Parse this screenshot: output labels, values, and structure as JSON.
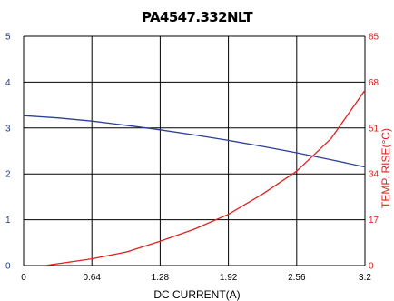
{
  "chart_data": {
    "type": "line",
    "title": "PA4547.332NLT",
    "xlabel": "DC CURRENT(A)",
    "ylabel": "",
    "y2label": "TEMP. RISE(°C)",
    "xlim": [
      0,
      3.2
    ],
    "ylim": [
      0,
      5
    ],
    "y2lim": [
      0,
      85
    ],
    "x_ticks": [
      "0",
      "0.64",
      "1.28",
      "1.92",
      "2.56",
      "3.2"
    ],
    "y_ticks": [
      "0",
      "1",
      "2",
      "3",
      "4",
      "5"
    ],
    "y2_ticks": [
      "0",
      "17",
      "34",
      "51",
      "68",
      "85"
    ],
    "grid": true,
    "colors": {
      "left_axis": "#1f3b8c",
      "right_axis": "#e0201e",
      "grid": "#000000"
    },
    "series": [
      {
        "axis": "left",
        "color": "#2b3f95",
        "x": [
          0,
          0.32,
          0.64,
          0.96,
          1.28,
          1.6,
          1.92,
          2.24,
          2.56,
          2.88,
          3.2
        ],
        "y": [
          3.27,
          3.22,
          3.15,
          3.06,
          2.96,
          2.85,
          2.73,
          2.6,
          2.46,
          2.31,
          2.15
        ]
      },
      {
        "axis": "right",
        "color": "#e0201e",
        "x": [
          0.2,
          0.64,
          0.96,
          1.28,
          1.6,
          1.92,
          2.24,
          2.56,
          2.88,
          3.2
        ],
        "y": [
          0,
          2.5,
          5,
          9,
          13.5,
          19,
          26.5,
          35,
          47,
          65
        ]
      }
    ]
  }
}
